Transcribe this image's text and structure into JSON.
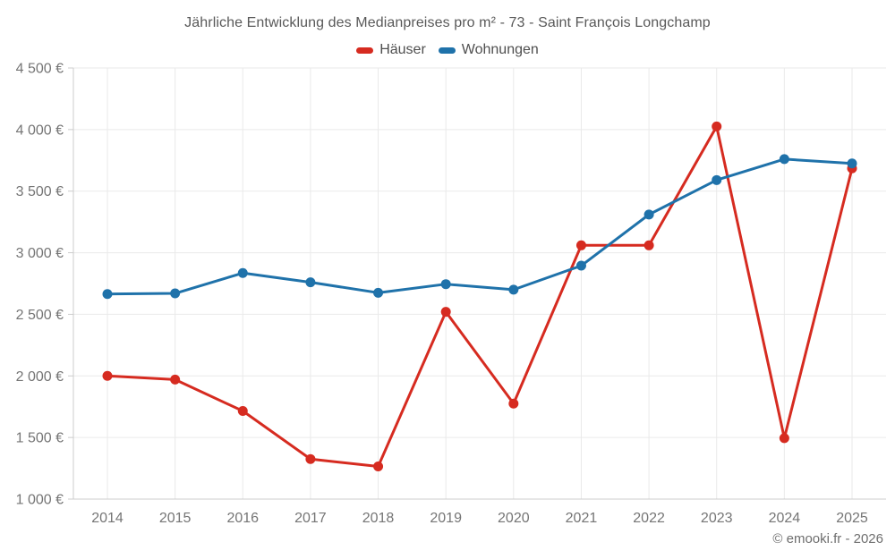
{
  "page": {
    "footer": "© emooki.fr - 2026"
  },
  "style": {
    "grid_color": "#eaeaea",
    "axis_color": "#cccccc",
    "tick_text_color": "#757575",
    "title_color": "#595959",
    "legend_text_color": "#4f4f4f",
    "footer_color": "#6e6e6e",
    "background": "#ffffff"
  },
  "chart_data": {
    "type": "line",
    "title": "Jährliche Entwicklung des Medianpreises pro m² - 73 - Saint François Longchamp",
    "x": [
      "2014",
      "2015",
      "2016",
      "2017",
      "2018",
      "2019",
      "2020",
      "2021",
      "2022",
      "2023",
      "2024",
      "2025"
    ],
    "series": [
      {
        "name": "Häuser",
        "color": "#d62b20",
        "values": [
          2000,
          1970,
          1715,
          1325,
          1265,
          2520,
          1775,
          3060,
          3060,
          4025,
          1495,
          3685
        ]
      },
      {
        "name": "Wohnungen",
        "color": "#1f72aa",
        "values": [
          2665,
          2670,
          2835,
          2760,
          2675,
          2745,
          2700,
          2895,
          3310,
          3590,
          3760,
          3725
        ]
      }
    ],
    "xlabel": "",
    "ylabel": "",
    "ylim": [
      1000,
      4500
    ],
    "ytick_step": 500,
    "ytick_suffix": " €",
    "grid": true,
    "legend_position": "top",
    "marker_radius": 5.5,
    "line_width": 3
  }
}
